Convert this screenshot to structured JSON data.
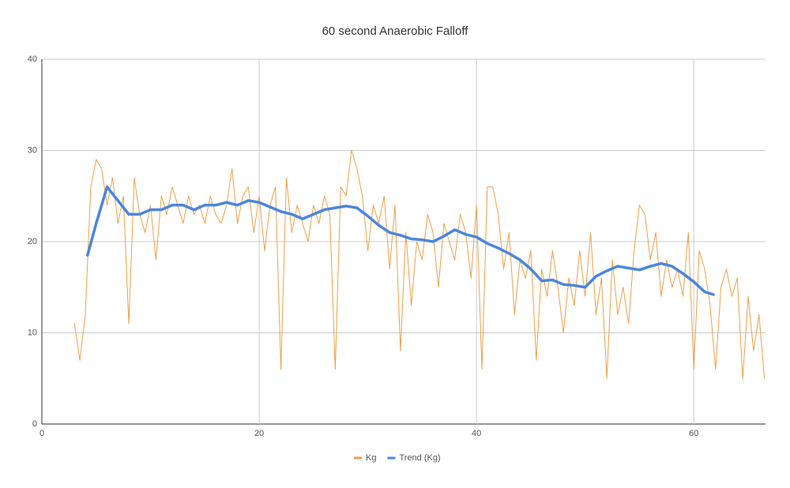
{
  "chart_data": {
    "type": "line",
    "title": "60 second Anaerobic Falloff",
    "xlim": [
      0,
      66.6
    ],
    "ylim": [
      0,
      40
    ],
    "xticks": [
      0,
      20,
      40,
      60
    ],
    "yticks": [
      0,
      10,
      20,
      30,
      40
    ],
    "grid": true,
    "legend": "bottom",
    "series": [
      {
        "name": "Kg",
        "color": "#f0a049",
        "width": 1,
        "x": [
          3,
          3.5,
          4,
          4.5,
          5,
          5.5,
          6,
          6.5,
          7,
          7.5,
          8,
          8.5,
          9,
          9.5,
          10,
          10.5,
          11,
          11.5,
          12,
          12.5,
          13,
          13.5,
          14,
          14.5,
          15,
          15.5,
          16,
          16.5,
          17,
          17.5,
          18,
          18.5,
          19,
          19.5,
          20,
          20.5,
          21,
          21.5,
          22,
          22.5,
          23,
          23.5,
          24,
          24.5,
          25,
          25.5,
          26,
          26.5,
          27,
          27.5,
          28,
          28.5,
          29,
          29.5,
          30,
          30.5,
          31,
          31.5,
          32,
          32.5,
          33,
          33.5,
          34,
          34.5,
          35,
          35.5,
          36,
          36.5,
          37,
          37.5,
          38,
          38.5,
          39,
          39.5,
          40,
          40.5,
          41,
          41.5,
          42,
          42.5,
          43,
          43.5,
          44,
          44.5,
          45,
          45.5,
          46,
          46.5,
          47,
          47.5,
          48,
          48.5,
          49,
          49.5,
          50,
          50.5,
          51,
          51.5,
          52,
          52.5,
          53,
          53.5,
          54,
          54.5,
          55,
          55.5,
          56,
          56.5,
          57,
          57.5,
          58,
          58.5,
          59,
          59.5,
          60,
          60.5,
          61,
          61.5,
          62,
          62.5,
          63,
          63.5,
          64,
          64.5,
          65,
          65.5,
          66,
          66.5
        ],
        "values": [
          11,
          7,
          12,
          26,
          29,
          28,
          24,
          27,
          22,
          25,
          11,
          27,
          23,
          21,
          24,
          18,
          25,
          23,
          26,
          24,
          22,
          25,
          23,
          24,
          22,
          25,
          23,
          22,
          24,
          28,
          22,
          25,
          26,
          21,
          25,
          19,
          24,
          26,
          6,
          27,
          21,
          24,
          22,
          20,
          24,
          22,
          25,
          23,
          6,
          26,
          25,
          30,
          28,
          25,
          19,
          24,
          22,
          25,
          17,
          24,
          8,
          21,
          13,
          20,
          18,
          23,
          21,
          15,
          22,
          20,
          18,
          23,
          21,
          16,
          24,
          6,
          26,
          26,
          23,
          17,
          21,
          12,
          18,
          16,
          19,
          7,
          17,
          14,
          19,
          15,
          10,
          16,
          13,
          19,
          14,
          21,
          12,
          16,
          5,
          18,
          12,
          15,
          11,
          19,
          24,
          23,
          18,
          21,
          14,
          18,
          15,
          17,
          14,
          21,
          6,
          19,
          17,
          13,
          6,
          15,
          17,
          14,
          16,
          5,
          14,
          8,
          12,
          5
        ]
      },
      {
        "name": "Trend (Kg)",
        "color": "#4a86e0",
        "width": 3.5,
        "x": [
          4.2,
          5,
          6,
          7,
          8,
          9,
          10,
          11,
          12,
          13,
          14,
          15,
          16,
          17,
          18,
          19,
          20,
          21,
          22,
          23,
          24,
          25,
          26,
          27,
          28,
          29,
          30,
          31,
          32,
          33,
          34,
          35,
          36,
          37,
          38,
          39,
          40,
          41,
          42,
          43,
          44,
          45,
          46,
          47,
          48,
          49,
          50,
          51,
          52,
          53,
          54,
          55,
          56,
          57,
          58,
          59,
          60,
          61,
          61.8
        ],
        "values": [
          18.5,
          22,
          26,
          24.5,
          23,
          23,
          23.5,
          23.5,
          24,
          24,
          23.5,
          24,
          24,
          24.3,
          24,
          24.5,
          24.3,
          23.8,
          23.3,
          23,
          22.5,
          23,
          23.5,
          23.7,
          23.9,
          23.7,
          22.8,
          21.8,
          21,
          20.7,
          20.3,
          20.2,
          20,
          20.6,
          21.3,
          20.8,
          20.5,
          19.8,
          19.3,
          18.7,
          18,
          17,
          15.7,
          15.8,
          15.3,
          15.2,
          15,
          16.2,
          16.8,
          17.3,
          17.1,
          16.9,
          17.3,
          17.6,
          17.3,
          16.5,
          15.6,
          14.5,
          14.2
        ]
      }
    ]
  }
}
